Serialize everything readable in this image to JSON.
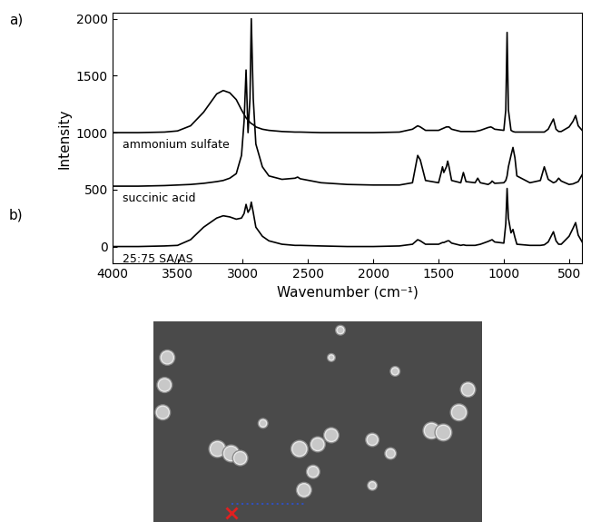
{
  "chart_data": {
    "type": "line",
    "panel_label": "a)",
    "x_label": "Wavenumber (cm⁻¹)",
    "y_label": "Intensity",
    "xlim": [
      4000,
      400
    ],
    "xticks": [
      4000,
      3500,
      3000,
      2500,
      2000,
      1500,
      1000,
      500
    ],
    "ylim": [
      -150,
      2050
    ],
    "yticks": [
      0,
      500,
      1000,
      1500,
      2000
    ],
    "grid": false,
    "x": [
      4000,
      3800,
      3600,
      3500,
      3400,
      3300,
      3200,
      3150,
      3100,
      3050,
      3010,
      2990,
      2975,
      2960,
      2945,
      2935,
      2920,
      2900,
      2850,
      2800,
      2700,
      2600,
      2580,
      2560,
      2400,
      2200,
      2000,
      1800,
      1700,
      1660,
      1640,
      1600,
      1500,
      1480,
      1470,
      1460,
      1440,
      1430,
      1420,
      1400,
      1330,
      1310,
      1290,
      1220,
      1200,
      1180,
      1120,
      1100,
      1090,
      1070,
      1000,
      985,
      975,
      965,
      945,
      930,
      915,
      900,
      800,
      720,
      690,
      660,
      620,
      600,
      580,
      560,
      500,
      470,
      450,
      430,
      400
    ],
    "series": [
      {
        "name": "ammonium sulfate",
        "color": "#000000",
        "values": [
          1000,
          1000,
          1005,
          1015,
          1060,
          1180,
          1340,
          1370,
          1350,
          1290,
          1200,
          1160,
          1130,
          1110,
          1090,
          1080,
          1070,
          1050,
          1030,
          1020,
          1010,
          1005,
          1005,
          1005,
          1000,
          1000,
          1000,
          1005,
          1030,
          1060,
          1050,
          1020,
          1020,
          1030,
          1035,
          1040,
          1050,
          1050,
          1050,
          1030,
          1010,
          1010,
          1010,
          1010,
          1015,
          1020,
          1045,
          1050,
          1045,
          1030,
          1020,
          1200,
          1880,
          1200,
          1020,
          1010,
          1005,
          1005,
          1005,
          1005,
          1005,
          1030,
          1120,
          1030,
          1010,
          1010,
          1050,
          1100,
          1150,
          1060,
          1020
        ]
      },
      {
        "name": "succinic acid",
        "color": "#000000",
        "values": [
          530,
          530,
          535,
          540,
          545,
          555,
          570,
          580,
          600,
          640,
          800,
          1100,
          1550,
          1000,
          1300,
          2000,
          1300,
          900,
          700,
          620,
          590,
          600,
          610,
          595,
          560,
          545,
          540,
          540,
          560,
          800,
          760,
          580,
          560,
          650,
          700,
          650,
          700,
          750,
          700,
          580,
          560,
          650,
          570,
          560,
          600,
          560,
          545,
          560,
          575,
          555,
          560,
          580,
          620,
          700,
          800,
          870,
          780,
          620,
          560,
          580,
          700,
          590,
          560,
          570,
          600,
          575,
          545,
          550,
          560,
          570,
          630
        ]
      },
      {
        "name": "25:75 SA/AS",
        "color": "#000000",
        "values": [
          0,
          0,
          5,
          10,
          60,
          170,
          250,
          270,
          260,
          240,
          250,
          290,
          370,
          300,
          330,
          390,
          300,
          170,
          90,
          50,
          20,
          10,
          10,
          10,
          5,
          0,
          0,
          5,
          20,
          60,
          50,
          20,
          20,
          30,
          35,
          35,
          45,
          50,
          50,
          30,
          10,
          15,
          10,
          10,
          15,
          20,
          45,
          55,
          60,
          40,
          30,
          200,
          510,
          250,
          120,
          150,
          80,
          20,
          10,
          10,
          15,
          40,
          130,
          50,
          20,
          20,
          90,
          160,
          210,
          100,
          40
        ]
      }
    ]
  },
  "image_panel": {
    "panel_label": "b)"
  }
}
